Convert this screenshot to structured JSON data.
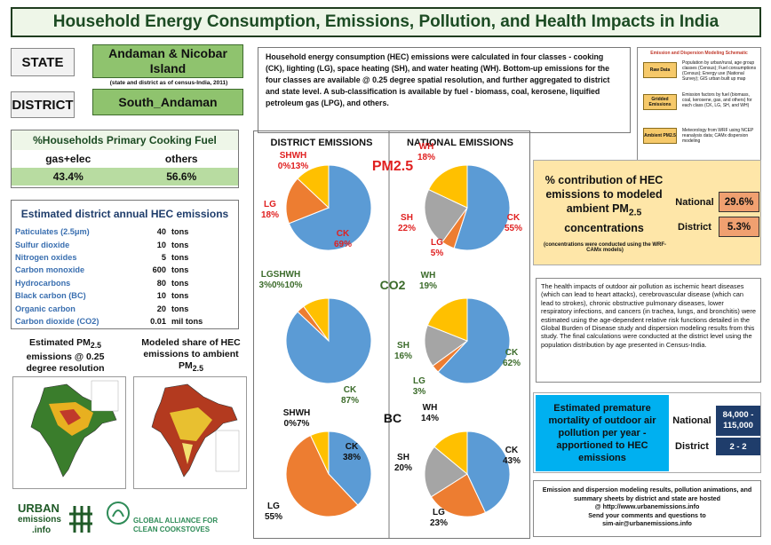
{
  "title": "Household Energy Consumption, Emissions, Pollution, and Health Impacts in India",
  "state": {
    "label": "STATE",
    "value": "Andaman & Nicobar Island",
    "note": "(state and district as of census-India, 2011)"
  },
  "district": {
    "label": "DISTRICT",
    "value": "South_Andaman"
  },
  "description": "Household energy consumption (HEC) emissions were calculated in four classes - cooking (CK), lighting (LG), space heating (SH), and water heating (WH). Bottom-up emissions for the four classes  are available @ 0.25 degree spatial resolution, and further aggregated to district and state level. A sub-classification is available by fuel - biomass, coal, kerosene, liquified petroleum gas (LPG), and others.",
  "schema": {
    "title": "Emission and Dispersion Modeling Schematic",
    "steps": [
      "Raw Data",
      "Gridded Emissions",
      "Ambient PM2.5"
    ],
    "notes": [
      "Population by urban/rural, age group classes (Census); Fuel consumptions (Census); Energy use (National Survey); GIS urban built up map",
      "Emission factors by fuel (biomass, coal, kerosene, gas, and others) for each class (CK, LG, SH, and WH)",
      "Meteorology from WRF using NCEP reanalysis data; CAMx dispersion modeling"
    ]
  },
  "fuel": {
    "title": "%Households Primary Cooking Fuel",
    "cols": [
      "gas+elec",
      "others"
    ],
    "vals": [
      "43.4%",
      "56.6%"
    ]
  },
  "emissions": {
    "title": "Estimated district annual HEC emissions",
    "rows": [
      {
        "name": "Paticulates (2.5μm)",
        "value": "40",
        "unit": "tons"
      },
      {
        "name": "Sulfur dioxide",
        "value": "10",
        "unit": "tons"
      },
      {
        "name": "Nitrogen oxides",
        "value": "5",
        "unit": "tons"
      },
      {
        "name": "Carbon monoxide",
        "value": "600",
        "unit": "tons"
      },
      {
        "name": "Hydrocarbons",
        "value": "80",
        "unit": "tons"
      },
      {
        "name": "Black carbon (BC)",
        "value": "10",
        "unit": "tons"
      },
      {
        "name": "Organic carbon",
        "value": "20",
        "unit": "tons"
      },
      {
        "name": "Carbon dioxide (CO2)",
        "value": "0.01",
        "unit": "mil tons"
      }
    ]
  },
  "maps": {
    "left_caption": "Estimated PM2.5 emissions @ 0.25 degree resolution",
    "right_caption": "Modeled share of HEC emissions to ambient PM2.5"
  },
  "pies": {
    "district_header": "DISTRICT EMISSIONS",
    "national_header": "NATIONAL EMISSIONS",
    "rows": [
      {
        "label": "PM2.5",
        "district": [
          {
            "k": "CK",
            "p": 69
          },
          {
            "k": "LG",
            "p": 18
          },
          {
            "k": "SH",
            "p": 0
          },
          {
            "k": "WH",
            "p": 13
          }
        ],
        "district_labels": [
          "CK 69%",
          "LG 18%",
          "SHWH 0%13%"
        ],
        "national": [
          {
            "k": "CK",
            "p": 55
          },
          {
            "k": "LG",
            "p": 5
          },
          {
            "k": "SH",
            "p": 22
          },
          {
            "k": "WH",
            "p": 18
          }
        ],
        "national_labels": [
          "CK 55%",
          "LG 5%",
          "SH 22%",
          "WH 18%"
        ],
        "color": "#e02020"
      },
      {
        "label": "CO2",
        "district": [
          {
            "k": "CK",
            "p": 87
          },
          {
            "k": "LG",
            "p": 3
          },
          {
            "k": "SH",
            "p": 0
          },
          {
            "k": "WH",
            "p": 10
          }
        ],
        "district_labels": [
          "CK 87%",
          "LGSHWH 3%0%10%"
        ],
        "national": [
          {
            "k": "CK",
            "p": 62
          },
          {
            "k": "LG",
            "p": 3
          },
          {
            "k": "SH",
            "p": 16
          },
          {
            "k": "WH",
            "p": 19
          }
        ],
        "national_labels": [
          "CK 62%",
          "LG 3%",
          "SH 16%",
          "WH 19%"
        ],
        "color": "#3b6b2a"
      },
      {
        "label": "BC",
        "district": [
          {
            "k": "CK",
            "p": 38
          },
          {
            "k": "LG",
            "p": 55
          },
          {
            "k": "SH",
            "p": 0
          },
          {
            "k": "WH",
            "p": 7
          }
        ],
        "district_labels": [
          "CK 38%",
          "LG 55%",
          "SHWH 0%7%"
        ],
        "national": [
          {
            "k": "CK",
            "p": 43
          },
          {
            "k": "LG",
            "p": 23
          },
          {
            "k": "SH",
            "p": 20
          },
          {
            "k": "WH",
            "p": 14
          }
        ],
        "national_labels": [
          "CK 43%",
          "LG 23%",
          "SH 20%",
          "WH 14%"
        ],
        "color": "#111"
      }
    ]
  },
  "contribution": {
    "title": "% contribution of HEC emissions to modeled ambient PM2.5 concentrations",
    "note": "(concentrations were conducted using the WRF-CAMx models)",
    "national_label": "National",
    "national_value": "29.6%",
    "district_label": "District",
    "district_value": "5.3%"
  },
  "health": "The health impacts of outdoor air pollution as ischemic heart diseases (which can lead to heart attacks), cerebrovascular disease (which can lead to strokes), chronic obstructive pulmonary diseases, lower respiratory infections, and cancers (in trachea, lungs, and bronchitis) were estimated using the age-dependent relative risk functions detailed in the Global Burden of Disease study and dispersion modeling results from this study. The final calculations were conducted at the district level using the population distribution by age presented in Census-India.",
  "mortality": {
    "title": "Estimated premature mortality of outdoor air pollution per year - apportioned to HEC emissions",
    "national_label": "National",
    "national_value": "84,000 - 115,000",
    "district_label": "District",
    "district_value": "2 - 2"
  },
  "footer": [
    "Emission and dispersion modeling results, pollution animations, and",
    "summary sheets by district and state are hosted",
    "@ http://www.urbanemissions.info",
    "Send your comments and questions to",
    "sim-air@urbanemissions.info"
  ],
  "logos": {
    "ue1": "URBAN",
    "ue2": "emissions",
    "ue3": ".info",
    "gacc": "GLOBAL ALLIANCE FOR CLEAN COOKSTOVES"
  },
  "colors": {
    "CK": "#5b9bd5",
    "LG": "#ed7d31",
    "SH": "#a5a5a5",
    "WH": "#ffc000"
  }
}
